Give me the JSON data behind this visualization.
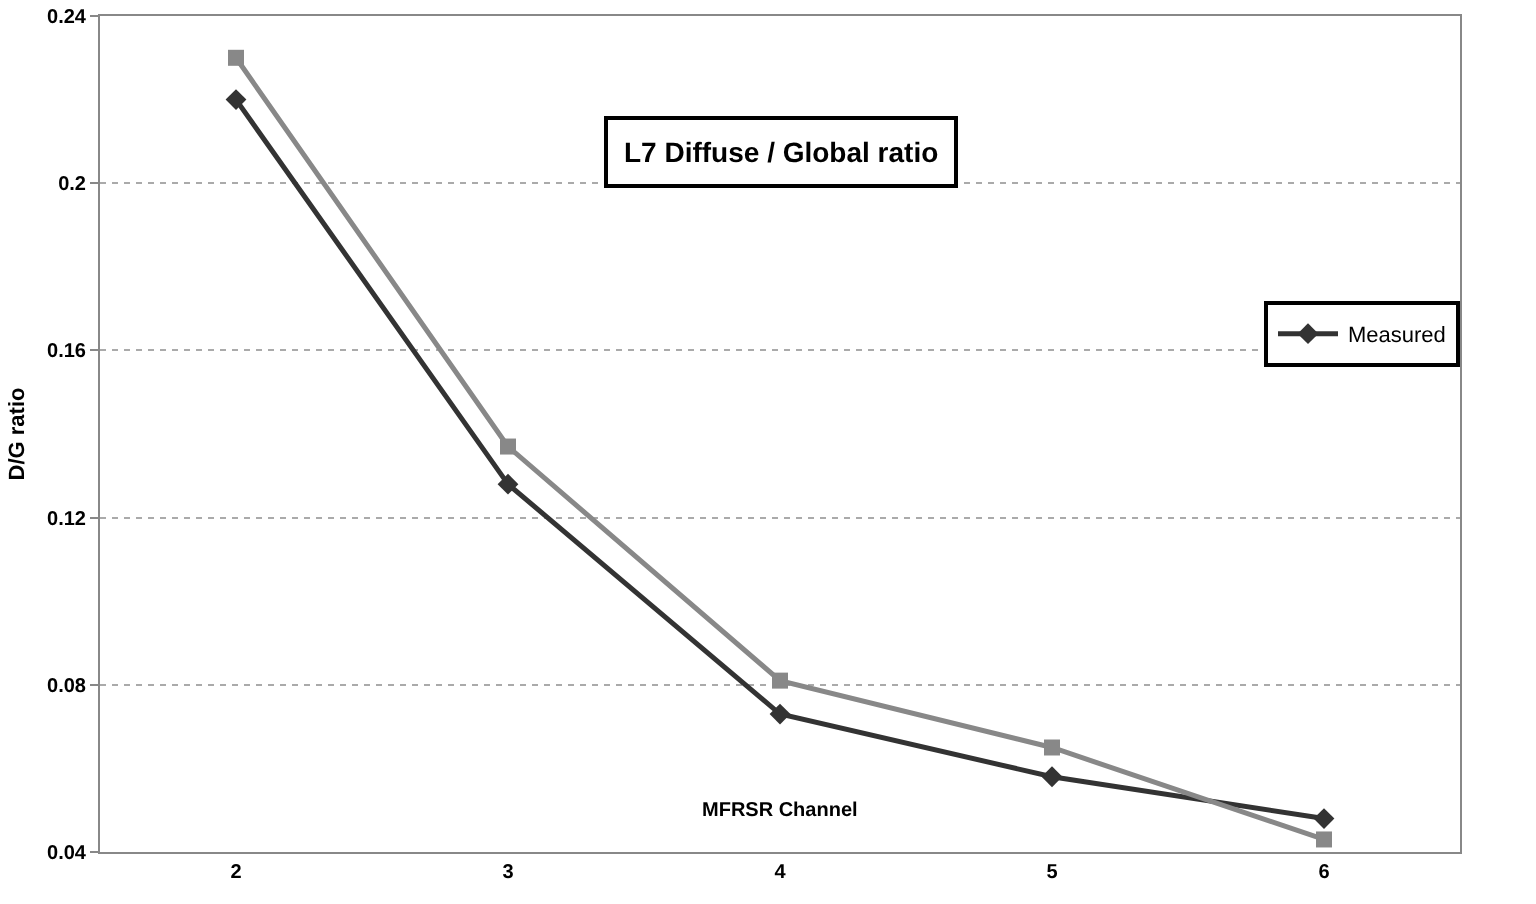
{
  "chart_data": {
    "type": "line",
    "title": "L7 Diffuse / Global ratio",
    "xlabel": "MFRSR Channel",
    "ylabel": "D/G ratio",
    "categories": [
      "2",
      "3",
      "4",
      "5",
      "6"
    ],
    "series": [
      {
        "name": "Measured",
        "color": "#333333",
        "marker": "diamond",
        "values": [
          0.22,
          0.128,
          0.073,
          0.058,
          0.048
        ]
      },
      {
        "color": "#888888",
        "marker": "square",
        "values": [
          0.23,
          0.137,
          0.081,
          0.065,
          0.043
        ]
      }
    ],
    "ylim": [
      0.04,
      0.24
    ],
    "yticks": [
      0.04,
      0.08,
      0.12,
      0.16,
      0.2,
      0.24
    ],
    "grid": "y",
    "legend": "right"
  }
}
